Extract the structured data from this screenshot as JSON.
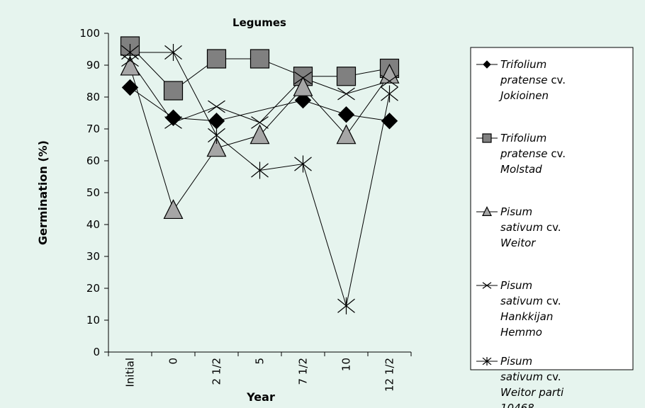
{
  "chart_data": {
    "type": "line",
    "title": "Legumes",
    "xlabel": "Year",
    "ylabel": "Germination (%)",
    "ylim": [
      0,
      100
    ],
    "yticks": [
      "0",
      "10",
      "20",
      "30",
      "40",
      "50",
      "60",
      "70",
      "80",
      "90",
      "100"
    ],
    "categories": [
      "Initial",
      "0",
      "2 1/2",
      "5",
      "7 1/2",
      "10",
      "12 1/2"
    ],
    "grid": false,
    "legend_position": "right",
    "series": [
      {
        "name": "Trifolium pratense cv. Jokioinen",
        "legend_lines": [
          [
            {
              "t": "Trifolium",
              "i": true
            }
          ],
          [
            {
              "t": "pratense",
              "i": true
            },
            {
              "t": " cv.",
              "i": false
            }
          ],
          [
            {
              "t": "Jokioinen",
              "i": true
            }
          ]
        ],
        "marker": "diamond",
        "color": "#000000",
        "values": [
          83,
          73.5,
          72.5,
          null,
          79,
          74.5,
          72.5
        ]
      },
      {
        "name": "Trifolium pratense cv. Molstad",
        "legend_lines": [
          [
            {
              "t": "Trifolium",
              "i": true
            }
          ],
          [
            {
              "t": "pratense",
              "i": true
            },
            {
              "t": " cv.",
              "i": false
            }
          ],
          [
            {
              "t": "Molstad",
              "i": true
            }
          ]
        ],
        "marker": "square",
        "color": "#808080",
        "values": [
          96,
          82,
          92,
          92,
          86.5,
          86.5,
          89
        ]
      },
      {
        "name": "Pisum sativum cv. Weitor",
        "legend_lines": [
          [
            {
              "t": "Pisum",
              "i": true
            }
          ],
          [
            {
              "t": "sativum",
              "i": true
            },
            {
              "t": " cv.",
              "i": false
            }
          ],
          [
            {
              "t": "Weitor",
              "i": true
            }
          ]
        ],
        "marker": "triangle",
        "color": "#a6a6a6",
        "values": [
          89.5,
          44.5,
          64,
          68,
          83,
          68,
          87
        ]
      },
      {
        "name": "Pisum sativum cv. Hankkijan Hemmo",
        "legend_lines": [
          [
            {
              "t": "Pisum",
              "i": true
            }
          ],
          [
            {
              "t": "sativum",
              "i": true
            },
            {
              "t": " cv.",
              "i": false
            }
          ],
          [
            {
              "t": "Hankkijan",
              "i": true
            }
          ],
          [
            {
              "t": "Hemmo",
              "i": true
            }
          ]
        ],
        "marker": "x",
        "color": "#000000",
        "values": [
          91.5,
          72,
          77,
          72,
          86,
          81,
          85
        ]
      },
      {
        "name": "Pisum sativum cv. Weitor parti 10468",
        "legend_lines": [
          [
            {
              "t": "Pisum",
              "i": true
            }
          ],
          [
            {
              "t": "sativum",
              "i": true
            },
            {
              "t": " cv.",
              "i": false
            }
          ],
          [
            {
              "t": "Weitor parti",
              "i": true
            }
          ],
          [
            {
              "t": "10468",
              "i": true
            }
          ]
        ],
        "marker": "star",
        "color": "#000000",
        "values": [
          94,
          94,
          68,
          57,
          59,
          14.5,
          81
        ]
      }
    ]
  }
}
